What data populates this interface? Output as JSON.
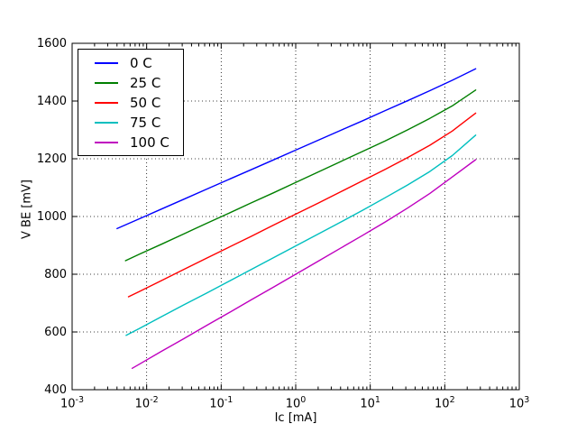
{
  "chart_data": {
    "type": "line",
    "title": "",
    "xlabel": "Ic [mA]",
    "ylabel": "V BE [mV]",
    "x_scale": "log10",
    "x_tick_base": "10",
    "x_tick_exponents": [
      -3,
      -2,
      -1,
      0,
      1,
      2,
      3
    ],
    "xlim_exponents": [
      -3,
      3
    ],
    "y_ticks": [
      400,
      600,
      800,
      1000,
      1200,
      1400,
      1600
    ],
    "ylim": [
      400,
      1600
    ],
    "grid": {
      "style": "dotted",
      "color": "#000000"
    },
    "axes_color": "#000000",
    "background": "#ffffff",
    "legend": {
      "position": "upper-left"
    },
    "series": [
      {
        "name": "0 C",
        "color": "#0000ff",
        "points": [
          [
            0.004,
            958
          ],
          [
            0.00794,
            992
          ],
          [
            0.01585,
            1026
          ],
          [
            0.03162,
            1060
          ],
          [
            0.0631,
            1094
          ],
          [
            0.1259,
            1128
          ],
          [
            0.2512,
            1162
          ],
          [
            0.5012,
            1196
          ],
          [
            1,
            1230
          ],
          [
            1.995,
            1264
          ],
          [
            3.981,
            1298
          ],
          [
            7.943,
            1332
          ],
          [
            15.85,
            1367
          ],
          [
            31.62,
            1401
          ],
          [
            63.1,
            1436
          ],
          [
            125.9,
            1472
          ],
          [
            260,
            1512
          ]
        ]
      },
      {
        "name": "25 C",
        "color": "#007f00",
        "points": [
          [
            0.0052,
            847
          ],
          [
            0.00794,
            869
          ],
          [
            0.01585,
            904
          ],
          [
            0.03162,
            940
          ],
          [
            0.0631,
            976
          ],
          [
            0.1259,
            1011
          ],
          [
            0.2512,
            1047
          ],
          [
            0.5012,
            1082
          ],
          [
            1,
            1118
          ],
          [
            1.995,
            1154
          ],
          [
            3.981,
            1190
          ],
          [
            7.943,
            1226
          ],
          [
            15.85,
            1262
          ],
          [
            31.62,
            1300
          ],
          [
            63.1,
            1340
          ],
          [
            125.9,
            1383
          ],
          [
            260,
            1438
          ]
        ]
      },
      {
        "name": "50 C",
        "color": "#ff0000",
        "points": [
          [
            0.0057,
            722
          ],
          [
            0.00794,
            740
          ],
          [
            0.01585,
            778
          ],
          [
            0.03162,
            817
          ],
          [
            0.0631,
            855
          ],
          [
            0.1259,
            893
          ],
          [
            0.2512,
            931
          ],
          [
            0.5012,
            970
          ],
          [
            1,
            1008
          ],
          [
            1.995,
            1046
          ],
          [
            3.981,
            1085
          ],
          [
            7.943,
            1124
          ],
          [
            15.85,
            1163
          ],
          [
            31.62,
            1204
          ],
          [
            63.1,
            1247
          ],
          [
            125.9,
            1296
          ],
          [
            260,
            1358
          ]
        ]
      },
      {
        "name": "75 C",
        "color": "#00bfbf",
        "points": [
          [
            0.0053,
            588
          ],
          [
            0.00794,
            612
          ],
          [
            0.01585,
            653
          ],
          [
            0.03162,
            694
          ],
          [
            0.0631,
            734
          ],
          [
            0.1259,
            775
          ],
          [
            0.2512,
            816
          ],
          [
            0.5012,
            857
          ],
          [
            1,
            898
          ],
          [
            1.995,
            939
          ],
          [
            3.981,
            980
          ],
          [
            7.943,
            1022
          ],
          [
            15.85,
            1065
          ],
          [
            31.62,
            1109
          ],
          [
            63.1,
            1156
          ],
          [
            125.9,
            1211
          ],
          [
            260,
            1282
          ]
        ]
      },
      {
        "name": "100 C",
        "color": "#bf00bf",
        "points": [
          [
            0.0064,
            474
          ],
          [
            0.00794,
            488
          ],
          [
            0.01585,
            533
          ],
          [
            0.03162,
            577
          ],
          [
            0.0631,
            622
          ],
          [
            0.1259,
            666
          ],
          [
            0.2512,
            711
          ],
          [
            0.5012,
            755
          ],
          [
            1,
            800
          ],
          [
            1.995,
            845
          ],
          [
            3.981,
            890
          ],
          [
            7.943,
            935
          ],
          [
            15.85,
            981
          ],
          [
            31.62,
            1029
          ],
          [
            63.1,
            1080
          ],
          [
            125.9,
            1137
          ],
          [
            260,
            1197
          ]
        ]
      }
    ]
  }
}
